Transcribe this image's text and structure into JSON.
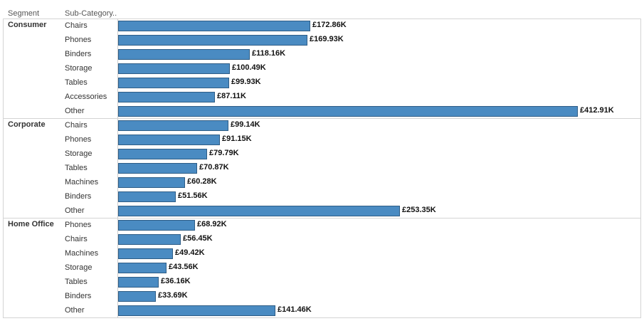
{
  "chart_data": {
    "type": "bar",
    "orientation": "horizontal",
    "columns": {
      "segment": "Segment",
      "sub_category": "Sub-Category.."
    },
    "segments": [
      {
        "name": "Consumer",
        "rows": [
          {
            "category": "Chairs",
            "value": 172.86,
            "label": "£172.86K"
          },
          {
            "category": "Phones",
            "value": 169.93,
            "label": "£169.93K"
          },
          {
            "category": "Binders",
            "value": 118.16,
            "label": "£118.16K"
          },
          {
            "category": "Storage",
            "value": 100.49,
            "label": "£100.49K"
          },
          {
            "category": "Tables",
            "value": 99.93,
            "label": "£99.93K"
          },
          {
            "category": "Accessories",
            "value": 87.11,
            "label": "£87.11K"
          },
          {
            "category": "Other",
            "value": 412.91,
            "label": "£412.91K"
          }
        ]
      },
      {
        "name": "Corporate",
        "rows": [
          {
            "category": "Chairs",
            "value": 99.14,
            "label": "£99.14K"
          },
          {
            "category": "Phones",
            "value": 91.15,
            "label": "£91.15K"
          },
          {
            "category": "Storage",
            "value": 79.79,
            "label": "£79.79K"
          },
          {
            "category": "Tables",
            "value": 70.87,
            "label": "£70.87K"
          },
          {
            "category": "Machines",
            "value": 60.28,
            "label": "£60.28K"
          },
          {
            "category": "Binders",
            "value": 51.56,
            "label": "£51.56K"
          },
          {
            "category": "Other",
            "value": 253.35,
            "label": "£253.35K"
          }
        ]
      },
      {
        "name": "Home Office",
        "rows": [
          {
            "category": "Phones",
            "value": 68.92,
            "label": "£68.92K"
          },
          {
            "category": "Chairs",
            "value": 56.45,
            "label": "£56.45K"
          },
          {
            "category": "Machines",
            "value": 49.42,
            "label": "£49.42K"
          },
          {
            "category": "Storage",
            "value": 43.56,
            "label": "£43.56K"
          },
          {
            "category": "Tables",
            "value": 36.16,
            "label": "£36.16K"
          },
          {
            "category": "Binders",
            "value": 33.69,
            "label": "£33.69K"
          },
          {
            "category": "Other",
            "value": 141.46,
            "label": "£141.46K"
          }
        ]
      }
    ],
    "xlim": [
      0,
      412.91
    ],
    "grid": false,
    "bar_color": "#4a8bc2"
  }
}
